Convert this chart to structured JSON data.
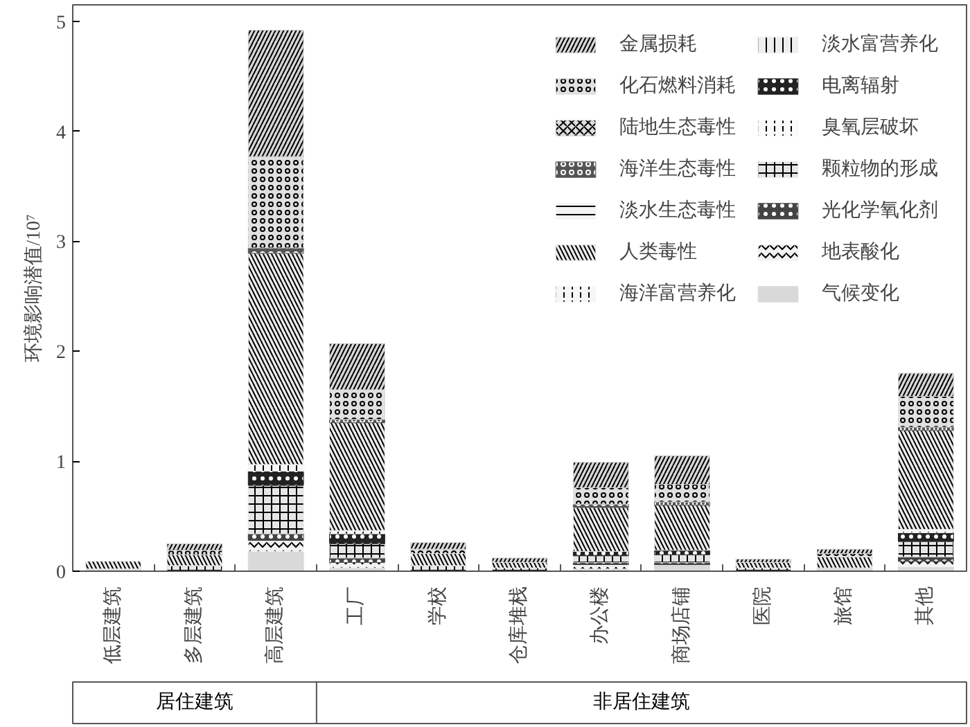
{
  "chart_data": {
    "type": "bar",
    "stacked": true,
    "ylabel": "环境影响潜值/10⁷",
    "categories": [
      "低层建筑",
      "多层建筑",
      "高层建筑",
      "工厂",
      "学校",
      "仓库堆栈",
      "办公楼",
      "商场店铺",
      "医院",
      "旅馆",
      "其他"
    ],
    "ylim": [
      0,
      5.15
    ],
    "yticks": [
      0,
      1,
      2,
      3,
      4,
      5
    ],
    "grid": false,
    "legend": "top right",
    "annotations": [
      "居住建筑",
      "非居住建筑"
    ],
    "series": [
      {
        "name": "气候变化",
        "color": "#d9d9d9",
        "values": [
          0.02,
          null,
          0.18,
          0.03,
          null,
          null,
          0.02,
          0.06,
          null,
          0.03,
          0.04
        ]
      },
      {
        "name": "地表酸化",
        "color": "#f2f2f2",
        "values": [
          null,
          null,
          0.1,
          0.05,
          null,
          null,
          0.04,
          null,
          null,
          null,
          0.05
        ]
      },
      {
        "name": "光化学氧化剂",
        "color": "#444444",
        "values": [
          null,
          null,
          0.06,
          0.04,
          null,
          null,
          0.02,
          0.02,
          null,
          null,
          0.04
        ]
      },
      {
        "name": "颗粒物的形成",
        "color": "#e6e6e6",
        "values": [
          null,
          0.05,
          0.44,
          0.13,
          0.05,
          0.03,
          0.06,
          0.07,
          0.03,
          null,
          0.14
        ]
      },
      {
        "name": "臭氧层破坏",
        "color": "#fafafa",
        "values": [
          null,
          null,
          null,
          null,
          null,
          null,
          null,
          null,
          null,
          null,
          null
        ]
      },
      {
        "name": "电离辐射",
        "color": "#222222",
        "values": [
          null,
          null,
          0.13,
          0.09,
          null,
          null,
          0.04,
          0.04,
          null,
          null,
          0.08
        ]
      },
      {
        "name": "淡水富营养化",
        "color": "#eeeeee",
        "values": [
          null,
          null,
          null,
          null,
          null,
          null,
          null,
          null,
          null,
          null,
          null
        ]
      },
      {
        "name": "海洋富营养化",
        "color": "#f6f6f6",
        "values": [
          null,
          null,
          0.06,
          0.03,
          null,
          null,
          null,
          null,
          null,
          null,
          0.03
        ]
      },
      {
        "name": "人类毒性",
        "color": "#ebebeb",
        "values": [
          0.07,
          0.1,
          1.92,
          0.98,
          0.11,
          0.05,
          0.4,
          0.41,
          0.05,
          0.1,
          0.9
        ]
      },
      {
        "name": "淡水生态毒性",
        "color": "#f4f4f4",
        "values": [
          null,
          null,
          null,
          null,
          null,
          null,
          null,
          null,
          null,
          null,
          null
        ]
      },
      {
        "name": "海洋生态毒性",
        "color": "#555555",
        "values": [
          null,
          null,
          0.05,
          0.03,
          null,
          null,
          0.03,
          0.03,
          null,
          null,
          0.03
        ]
      },
      {
        "name": "陆地生态毒性",
        "color": "#dddddd",
        "values": [
          null,
          null,
          null,
          null,
          null,
          null,
          null,
          null,
          null,
          null,
          null
        ]
      },
      {
        "name": "化石燃料消耗",
        "color": "#e0e0e0",
        "values": [
          null,
          0.04,
          0.83,
          0.27,
          0.04,
          null,
          0.15,
          0.16,
          null,
          0.03,
          0.28
        ]
      },
      {
        "name": "金属损耗",
        "color": "#d6d6d6",
        "values": [
          null,
          0.06,
          1.15,
          0.42,
          0.06,
          0.04,
          0.23,
          0.26,
          0.03,
          0.04,
          0.21
        ]
      }
    ]
  }
}
